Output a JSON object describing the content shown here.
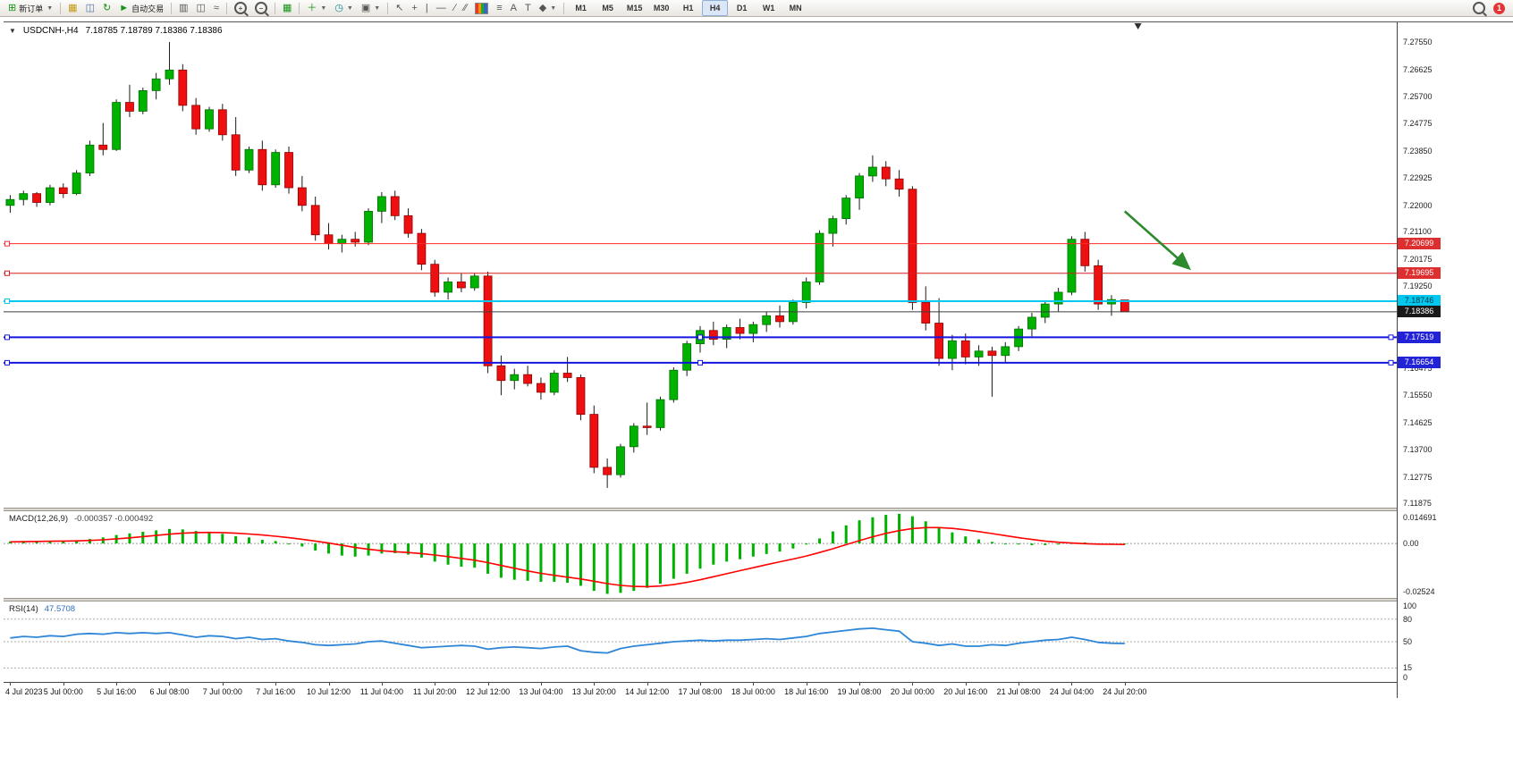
{
  "toolbar": {
    "new_order_label": "新订单",
    "auto_trading_label": "自动交易",
    "text_tool_label": "A",
    "label_tool_label": "T",
    "timeframes": [
      "M1",
      "M5",
      "M15",
      "M30",
      "H1",
      "H4",
      "D1",
      "W1",
      "MN"
    ],
    "active_timeframe": "H4",
    "notification_count": "1"
  },
  "chart_header": {
    "symbol": "USDCNH-,H4",
    "ohlc": "7.18785 7.18789 7.18386 7.18386"
  },
  "chart_data": [
    {
      "type": "candlestick",
      "symbol": "USDCNH-",
      "timeframe": "H4",
      "total_slots": 105,
      "price_min": 7.1173,
      "price_max": 7.2822,
      "price_ticks": [
        "7.27550",
        "7.26625",
        "7.25700",
        "7.24775",
        "7.23850",
        "7.22925",
        "7.22000",
        "7.21100",
        "7.20175",
        "7.19250",
        "7.18325",
        "7.17400",
        "7.16475",
        "7.15550",
        "7.14625",
        "7.13700",
        "7.12775",
        "7.11875"
      ],
      "x_labels": [
        "4 Jul 2023",
        "5 Jul 00:00",
        "5 Jul 16:00",
        "6 Jul 08:00",
        "7 Jul 00:00",
        "7 Jul 16:00",
        "10 Jul 12:00",
        "11 Jul 04:00",
        "11 Jul 20:00",
        "12 Jul 12:00",
        "13 Jul 04:00",
        "13 Jul 20:00",
        "14 Jul 12:00",
        "17 Jul 08:00",
        "18 Jul 00:00",
        "18 Jul 16:00",
        "19 Jul 08:00",
        "20 Jul 00:00",
        "20 Jul 16:00",
        "21 Jul 08:00",
        "24 Jul 04:00",
        "24 Jul 20:00"
      ],
      "bars_per_label": 4,
      "colors": {
        "bull": "#00b200",
        "bull_stroke": "#006e00",
        "bear": "#ee1010",
        "bear_stroke": "#8e0000",
        "wick": "#1a1a1a"
      },
      "candles": [
        [
          7.22,
          7.2235,
          7.2175,
          7.222
        ],
        [
          7.222,
          7.225,
          7.22,
          7.224
        ],
        [
          7.224,
          7.2245,
          7.2195,
          7.221
        ],
        [
          7.221,
          7.227,
          7.22,
          7.226
        ],
        [
          7.226,
          7.2275,
          7.2225,
          7.224
        ],
        [
          7.224,
          7.232,
          7.2235,
          7.231
        ],
        [
          7.231,
          7.242,
          7.23,
          7.2405
        ],
        [
          7.2405,
          7.248,
          7.237,
          7.239
        ],
        [
          7.239,
          7.256,
          7.2385,
          7.255
        ],
        [
          7.255,
          7.261,
          7.25,
          7.252
        ],
        [
          7.252,
          7.26,
          7.251,
          7.259
        ],
        [
          7.259,
          7.265,
          7.256,
          7.263
        ],
        [
          7.263,
          7.2755,
          7.261,
          7.266
        ],
        [
          7.266,
          7.268,
          7.252,
          7.254
        ],
        [
          7.254,
          7.2565,
          7.244,
          7.246
        ],
        [
          7.246,
          7.2535,
          7.245,
          7.2525
        ],
        [
          7.2525,
          7.2545,
          7.242,
          7.244
        ],
        [
          7.244,
          7.25,
          7.23,
          7.232
        ],
        [
          7.232,
          7.24,
          7.231,
          7.239
        ],
        [
          7.239,
          7.242,
          7.225,
          7.227
        ],
        [
          7.227,
          7.239,
          7.226,
          7.238
        ],
        [
          7.238,
          7.24,
          7.224,
          7.226
        ],
        [
          7.226,
          7.23,
          7.218,
          7.22
        ],
        [
          7.22,
          7.223,
          7.208,
          7.21
        ],
        [
          7.21,
          7.214,
          7.205,
          7.207
        ],
        [
          7.207,
          7.21,
          7.204,
          7.2085
        ],
        [
          7.2085,
          7.211,
          7.206,
          7.2075
        ],
        [
          7.2075,
          7.219,
          7.2065,
          7.218
        ],
        [
          7.218,
          7.2245,
          7.214,
          7.223
        ],
        [
          7.223,
          7.225,
          7.215,
          7.2165
        ],
        [
          7.2165,
          7.219,
          7.209,
          7.2105
        ],
        [
          7.2105,
          7.212,
          7.198,
          7.2
        ],
        [
          7.2,
          7.2015,
          7.189,
          7.1905
        ],
        [
          7.1905,
          7.1955,
          7.188,
          7.194
        ],
        [
          7.194,
          7.197,
          7.1905,
          7.192
        ],
        [
          7.192,
          7.197,
          7.191,
          7.196
        ],
        [
          7.196,
          7.1975,
          7.163,
          7.1655
        ],
        [
          7.1655,
          7.169,
          7.1555,
          7.1605
        ],
        [
          7.1605,
          7.1645,
          7.1575,
          7.1625
        ],
        [
          7.1625,
          7.1655,
          7.1585,
          7.1595
        ],
        [
          7.1595,
          7.1615,
          7.154,
          7.1565
        ],
        [
          7.1565,
          7.164,
          7.1555,
          7.163
        ],
        [
          7.163,
          7.1685,
          7.16,
          7.1615
        ],
        [
          7.1615,
          7.1625,
          7.147,
          7.149
        ],
        [
          7.149,
          7.152,
          7.129,
          7.131
        ],
        [
          7.131,
          7.134,
          7.124,
          7.1285
        ],
        [
          7.1285,
          7.139,
          7.1275,
          7.138
        ],
        [
          7.138,
          7.146,
          7.136,
          7.145
        ],
        [
          7.145,
          7.153,
          7.142,
          7.1445
        ],
        [
          7.1445,
          7.155,
          7.1435,
          7.154
        ],
        [
          7.154,
          7.165,
          7.153,
          7.164
        ],
        [
          7.164,
          7.174,
          7.162,
          7.173
        ],
        [
          7.173,
          7.179,
          7.17,
          7.1775
        ],
        [
          7.1775,
          7.1805,
          7.1725,
          7.1745
        ],
        [
          7.1745,
          7.1795,
          7.1715,
          7.1785
        ],
        [
          7.1785,
          7.1815,
          7.1745,
          7.1765
        ],
        [
          7.1765,
          7.1805,
          7.1735,
          7.1795
        ],
        [
          7.1795,
          7.184,
          7.177,
          7.1825
        ],
        [
          7.1825,
          7.186,
          7.1785,
          7.1805
        ],
        [
          7.1805,
          7.188,
          7.1795,
          7.187
        ],
        [
          7.187,
          7.1955,
          7.185,
          7.194
        ],
        [
          7.194,
          7.2115,
          7.193,
          7.2105
        ],
        [
          7.2105,
          7.2165,
          7.206,
          7.2155
        ],
        [
          7.2155,
          7.2235,
          7.2135,
          7.2225
        ],
        [
          7.2225,
          7.231,
          7.2185,
          7.23
        ],
        [
          7.23,
          7.237,
          7.228,
          7.233
        ],
        [
          7.233,
          7.235,
          7.2265,
          7.229
        ],
        [
          7.229,
          7.232,
          7.223,
          7.2255
        ],
        [
          7.2255,
          7.2265,
          7.1845,
          7.187
        ],
        [
          7.187,
          7.1925,
          7.1775,
          7.18
        ],
        [
          7.18,
          7.1885,
          7.1655,
          7.168
        ],
        [
          7.168,
          7.176,
          7.164,
          7.174
        ],
        [
          7.174,
          7.1765,
          7.166,
          7.1685
        ],
        [
          7.1685,
          7.1725,
          7.1655,
          7.1705
        ],
        [
          7.1705,
          7.172,
          7.155,
          7.169
        ],
        [
          7.169,
          7.1735,
          7.1665,
          7.172
        ],
        [
          7.172,
          7.179,
          7.1705,
          7.178
        ],
        [
          7.178,
          7.1835,
          7.1755,
          7.182
        ],
        [
          7.182,
          7.1875,
          7.18,
          7.1865
        ],
        [
          7.1865,
          7.192,
          7.184,
          7.1905
        ],
        [
          7.1905,
          7.2095,
          7.1895,
          7.2085
        ],
        [
          7.2085,
          7.211,
          7.1975,
          7.1995
        ],
        [
          7.1995,
          7.2015,
          7.1845,
          7.1865
        ],
        [
          7.1865,
          7.1895,
          7.1825,
          7.188
        ],
        [
          7.18785,
          7.18789,
          7.18386,
          7.18386
        ]
      ],
      "hlines": [
        {
          "price": 7.20699,
          "label": "7.20699",
          "color": "#ff2a2a",
          "badge_bg": "#dd2f2f",
          "badge_fg": "#ffffff",
          "width": 1,
          "handles": "left"
        },
        {
          "price": 7.19695,
          "label": "7.19695",
          "color": "#d42020",
          "badge_bg": "#dd2f2f",
          "badge_fg": "#ffffff",
          "width": 1,
          "handles": "left"
        },
        {
          "price": 7.18746,
          "label": "7.18746",
          "color": "#00c8ee",
          "badge_bg": "#00c8ee",
          "badge_fg": "#003848",
          "width": 2,
          "handles": "left"
        },
        {
          "price": 7.18386,
          "label": "7.18386",
          "color": "#3c3c3c",
          "badge_bg": "#191919",
          "badge_fg": "#ffffff",
          "width": 1,
          "handles": "none"
        },
        {
          "price": 7.17519,
          "label": "7.17519",
          "color": "#1515e0",
          "badge_bg": "#2222d6",
          "badge_fg": "#ffffff",
          "width": 2,
          "handles": "all"
        },
        {
          "price": 7.16654,
          "label": "7.16654",
          "color": "#1515e0",
          "badge_bg": "#2222d6",
          "badge_fg": "#ffffff",
          "width": 2,
          "handles": "all"
        }
      ],
      "arrow": {
        "from_bar": 84,
        "from_price": 7.218,
        "to_bar": 88.8,
        "to_price": 7.1988,
        "color": "#2d8a2d"
      },
      "shift_marker_bar": 85
    },
    {
      "type": "macd",
      "label": "MACD(12,26,9)",
      "display": "-0.000357 -0.000492",
      "scale_max": 0.016,
      "scale_min": -0.027,
      "axis_top": "0.014691",
      "axis_zero": "0.00",
      "axis_bottom": "-0.02524",
      "colors": {
        "histogram": "#00b200",
        "signal": "#ff0000"
      },
      "histogram": [
        0.001,
        0.0012,
        0.001,
        0.0013,
        0.0012,
        0.0016,
        0.0022,
        0.003,
        0.0042,
        0.005,
        0.0058,
        0.0065,
        0.0072,
        0.007,
        0.0062,
        0.0058,
        0.0048,
        0.0036,
        0.003,
        0.0018,
        0.0012,
        0.0,
        -0.0015,
        -0.0035,
        -0.005,
        -0.006,
        -0.0065,
        -0.006,
        -0.005,
        -0.0048,
        -0.0055,
        -0.007,
        -0.009,
        -0.0105,
        -0.0115,
        -0.012,
        -0.015,
        -0.017,
        -0.018,
        -0.0185,
        -0.019,
        -0.019,
        -0.0195,
        -0.021,
        -0.0235,
        -0.025,
        -0.0245,
        -0.0235,
        -0.022,
        -0.02,
        -0.0175,
        -0.015,
        -0.0125,
        -0.0105,
        -0.009,
        -0.0078,
        -0.0065,
        -0.0052,
        -0.004,
        -0.0025,
        -0.0005,
        0.0025,
        0.006,
        0.009,
        0.0115,
        0.013,
        0.0142,
        0.0147,
        0.0135,
        0.011,
        0.008,
        0.0055,
        0.0035,
        0.002,
        0.0008,
        0.0,
        -0.0005,
        -0.0008,
        -0.0008,
        -0.0005,
        0.0002,
        0.0005,
        0.0,
        -0.0003,
        -0.000357
      ],
      "signal": [
        0.0008,
        0.0009,
        0.001,
        0.0011,
        0.0012,
        0.0013,
        0.0015,
        0.0018,
        0.0023,
        0.0028,
        0.0034,
        0.004,
        0.0046,
        0.0051,
        0.0054,
        0.0055,
        0.0054,
        0.0051,
        0.0047,
        0.0042,
        0.0036,
        0.0029,
        0.0021,
        0.0012,
        0.0002,
        -0.0009,
        -0.002,
        -0.0029,
        -0.0036,
        -0.0041,
        -0.0045,
        -0.005,
        -0.0057,
        -0.0065,
        -0.0074,
        -0.0083,
        -0.0095,
        -0.0109,
        -0.0123,
        -0.0136,
        -0.0148,
        -0.0158,
        -0.0167,
        -0.0176,
        -0.0187,
        -0.0199,
        -0.0208,
        -0.0213,
        -0.0214,
        -0.0211,
        -0.0204,
        -0.0193,
        -0.018,
        -0.0165,
        -0.015,
        -0.0135,
        -0.012,
        -0.0105,
        -0.0091,
        -0.0077,
        -0.0062,
        -0.0045,
        -0.0026,
        -0.0006,
        0.0014,
        0.0033,
        0.005,
        0.0064,
        0.0074,
        0.0079,
        0.0079,
        0.0075,
        0.0068,
        0.0059,
        0.0049,
        0.0039,
        0.0029,
        0.002,
        0.0012,
        0.0006,
        0.0002,
        -0.0001,
        -0.0003,
        -0.0004,
        -0.000492
      ]
    },
    {
      "type": "rsi",
      "label": "RSI(14)",
      "display": "47.5708",
      "levels": [
        80,
        50,
        15
      ],
      "axis_labels": [
        "100",
        "80",
        "50",
        "15",
        "0"
      ],
      "color": "#2e86d8",
      "values": [
        55,
        57,
        56,
        58,
        57,
        60,
        61,
        60,
        62,
        61,
        62,
        61,
        62,
        59,
        56,
        58,
        57,
        54,
        56,
        53,
        54,
        51,
        49,
        46,
        45,
        46,
        47,
        50,
        51,
        48,
        45,
        42,
        43,
        44,
        45,
        44,
        40,
        42,
        43,
        42,
        41,
        43,
        44,
        38,
        36,
        35,
        41,
        44,
        46,
        48,
        50,
        51,
        52,
        51,
        52,
        52,
        53,
        54,
        53,
        55,
        57,
        61,
        63,
        65,
        67,
        68,
        66,
        64,
        50,
        48,
        45,
        47,
        44,
        44,
        46,
        45,
        48,
        50,
        52,
        53,
        56,
        53,
        49,
        48,
        47.5708
      ]
    }
  ]
}
